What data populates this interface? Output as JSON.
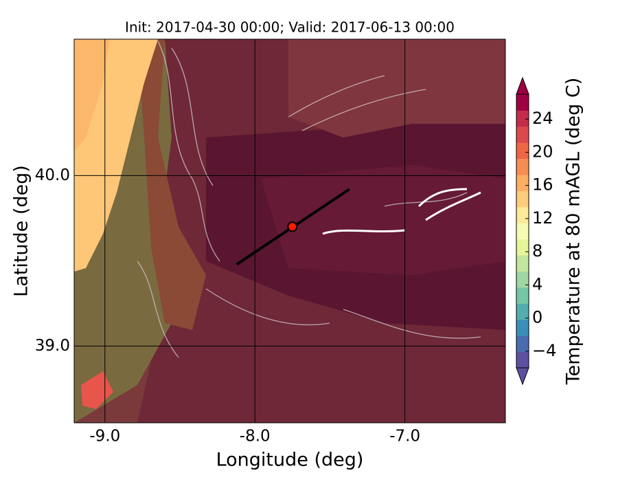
{
  "chart_data": {
    "type": "map",
    "title": "Init: 2017-04-30 00:00; Valid: 2017-06-13 00:00",
    "x_label": "Longitude (deg)",
    "y_label": "Latitude (deg)",
    "xlim": [
      -9.205,
      -6.33
    ],
    "ylim": [
      38.55,
      40.8
    ],
    "xticks": [
      {
        "value": -9,
        "label": "-9.0"
      },
      {
        "value": -8,
        "label": "-8.0"
      },
      {
        "value": -7,
        "label": "-7.0"
      }
    ],
    "yticks": [
      {
        "value": 39,
        "label": "39.0"
      },
      {
        "value": 40,
        "label": "40.0"
      }
    ],
    "grid": true,
    "cross_section": {
      "x": [
        -8.12,
        -7.37
      ],
      "y": [
        39.48,
        39.92
      ],
      "color": "#000000"
    },
    "point": {
      "x": -7.75,
      "y": 39.7,
      "color": "#ff1a00"
    },
    "colorbar": {
      "label": "Temperature at 80 mAGL (deg C)",
      "clim": [
        -6,
        27
      ],
      "ticks": [
        {
          "value": -4,
          "label": "−4"
        },
        0,
        4,
        8,
        12,
        16,
        20,
        24
      ],
      "colors": [
        "#5e4fa2",
        "#4a6db1",
        "#3a8fb9",
        "#53aead",
        "#75c7a4",
        "#9ed7a4",
        "#c4e69c",
        "#e6f598",
        "#f6fbb2",
        "#fee999",
        "#fdcd7b",
        "#fdae61",
        "#f88d52",
        "#ef6645",
        "#dc494c",
        "#c42c4a",
        "#9e0142"
      ]
    }
  }
}
